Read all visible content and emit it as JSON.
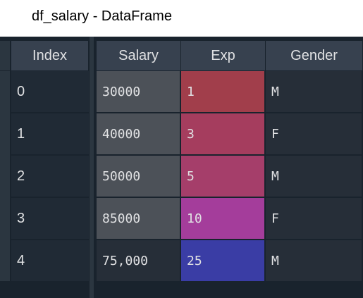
{
  "window": {
    "title": "df_salary - DataFrame"
  },
  "table": {
    "index_header": "Index",
    "columns": [
      "Salary",
      "Exp",
      "Gender"
    ],
    "index": [
      "0",
      "1",
      "2",
      "3",
      "4"
    ],
    "rows": [
      [
        "30000",
        "1",
        "M"
      ],
      [
        "40000",
        "3",
        "F"
      ],
      [
        "50000",
        "5",
        "M"
      ],
      [
        "85000",
        "10",
        "F"
      ],
      [
        "75,000",
        "25",
        "M"
      ]
    ],
    "cell_colors": [
      [
        "#4c5158",
        "#a13e4b",
        "#262e38"
      ],
      [
        "#4c5158",
        "#a53d5e",
        "#262e38"
      ],
      [
        "#4c5158",
        "#a53e6a",
        "#262e38"
      ],
      [
        "#4c5158",
        "#a43d9b",
        "#262e38"
      ],
      [
        "#262e38",
        "#3a3da5",
        "#262e38"
      ]
    ]
  }
}
